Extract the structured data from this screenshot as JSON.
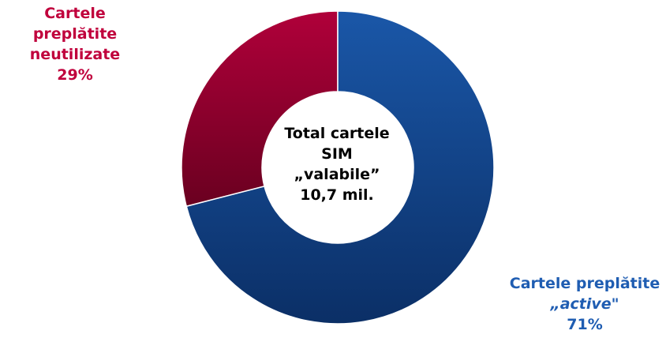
{
  "chart_data": {
    "type": "pie",
    "donut": true,
    "slices": [
      {
        "label_lines": [
          "Cartele preplătite",
          "neutilizate"
        ],
        "percent_label": "29%",
        "value": 29,
        "color": "#a10034"
      },
      {
        "label_lines": [
          "Cartele preplătite",
          "„active\""
        ],
        "percent_label": "71%",
        "value": 71,
        "color": "#124c98"
      }
    ],
    "center_lines": [
      "Total cartele",
      "SIM",
      "„valabile”",
      "10,7 mil."
    ],
    "legend": "none"
  }
}
